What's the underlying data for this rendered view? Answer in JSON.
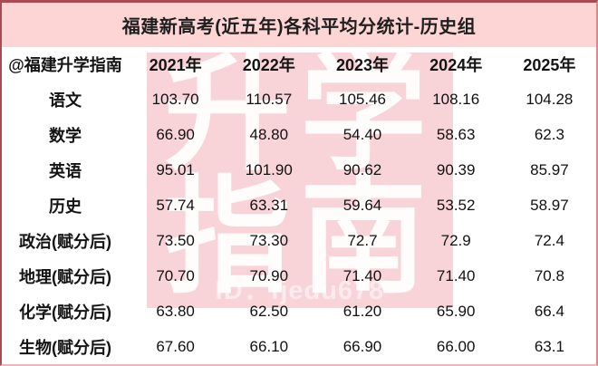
{
  "chart_data": {
    "type": "table",
    "title": "福建新高考(近五年)各科平均分统计-历史组",
    "corner_header": "@福建升学指南",
    "columns": [
      "2021年",
      "2022年",
      "2023年",
      "2024年",
      "2025年"
    ],
    "rows": [
      {
        "label": "语文",
        "values": [
          "103.70",
          "110.57",
          "105.46",
          "108.16",
          "104.28"
        ]
      },
      {
        "label": "数学",
        "values": [
          "66.90",
          "48.80",
          "54.40",
          "58.63",
          "62.3"
        ]
      },
      {
        "label": "英语",
        "values": [
          "95.01",
          "101.90",
          "90.62",
          "90.39",
          "85.97"
        ]
      },
      {
        "label": "历史",
        "values": [
          "57.74",
          "63.31",
          "59.64",
          "53.52",
          "58.97"
        ]
      },
      {
        "label": "政治(赋分后)",
        "values": [
          "73.50",
          "73.30",
          "72.7",
          "72.9",
          "72.4"
        ]
      },
      {
        "label": "地理(赋分后)",
        "values": [
          "70.70",
          "70.90",
          "71.40",
          "71.40",
          "70.8"
        ]
      },
      {
        "label": "化学(赋分后)",
        "values": [
          "63.80",
          "62.50",
          "61.20",
          "65.90",
          "66.4"
        ]
      },
      {
        "label": "生物(赋分后)",
        "values": [
          "67.60",
          "66.10",
          "66.90",
          "66.00",
          "63.1"
        ]
      }
    ]
  },
  "watermark": {
    "line1": "升学",
    "line2": "指南",
    "id_label": "ID：fjedu678"
  },
  "colors": {
    "border_dark": "#a94a55",
    "title_band_bg": "#fcd5d4",
    "watermark_bg": "#f8d3d7",
    "text": "#1b1b1b"
  }
}
